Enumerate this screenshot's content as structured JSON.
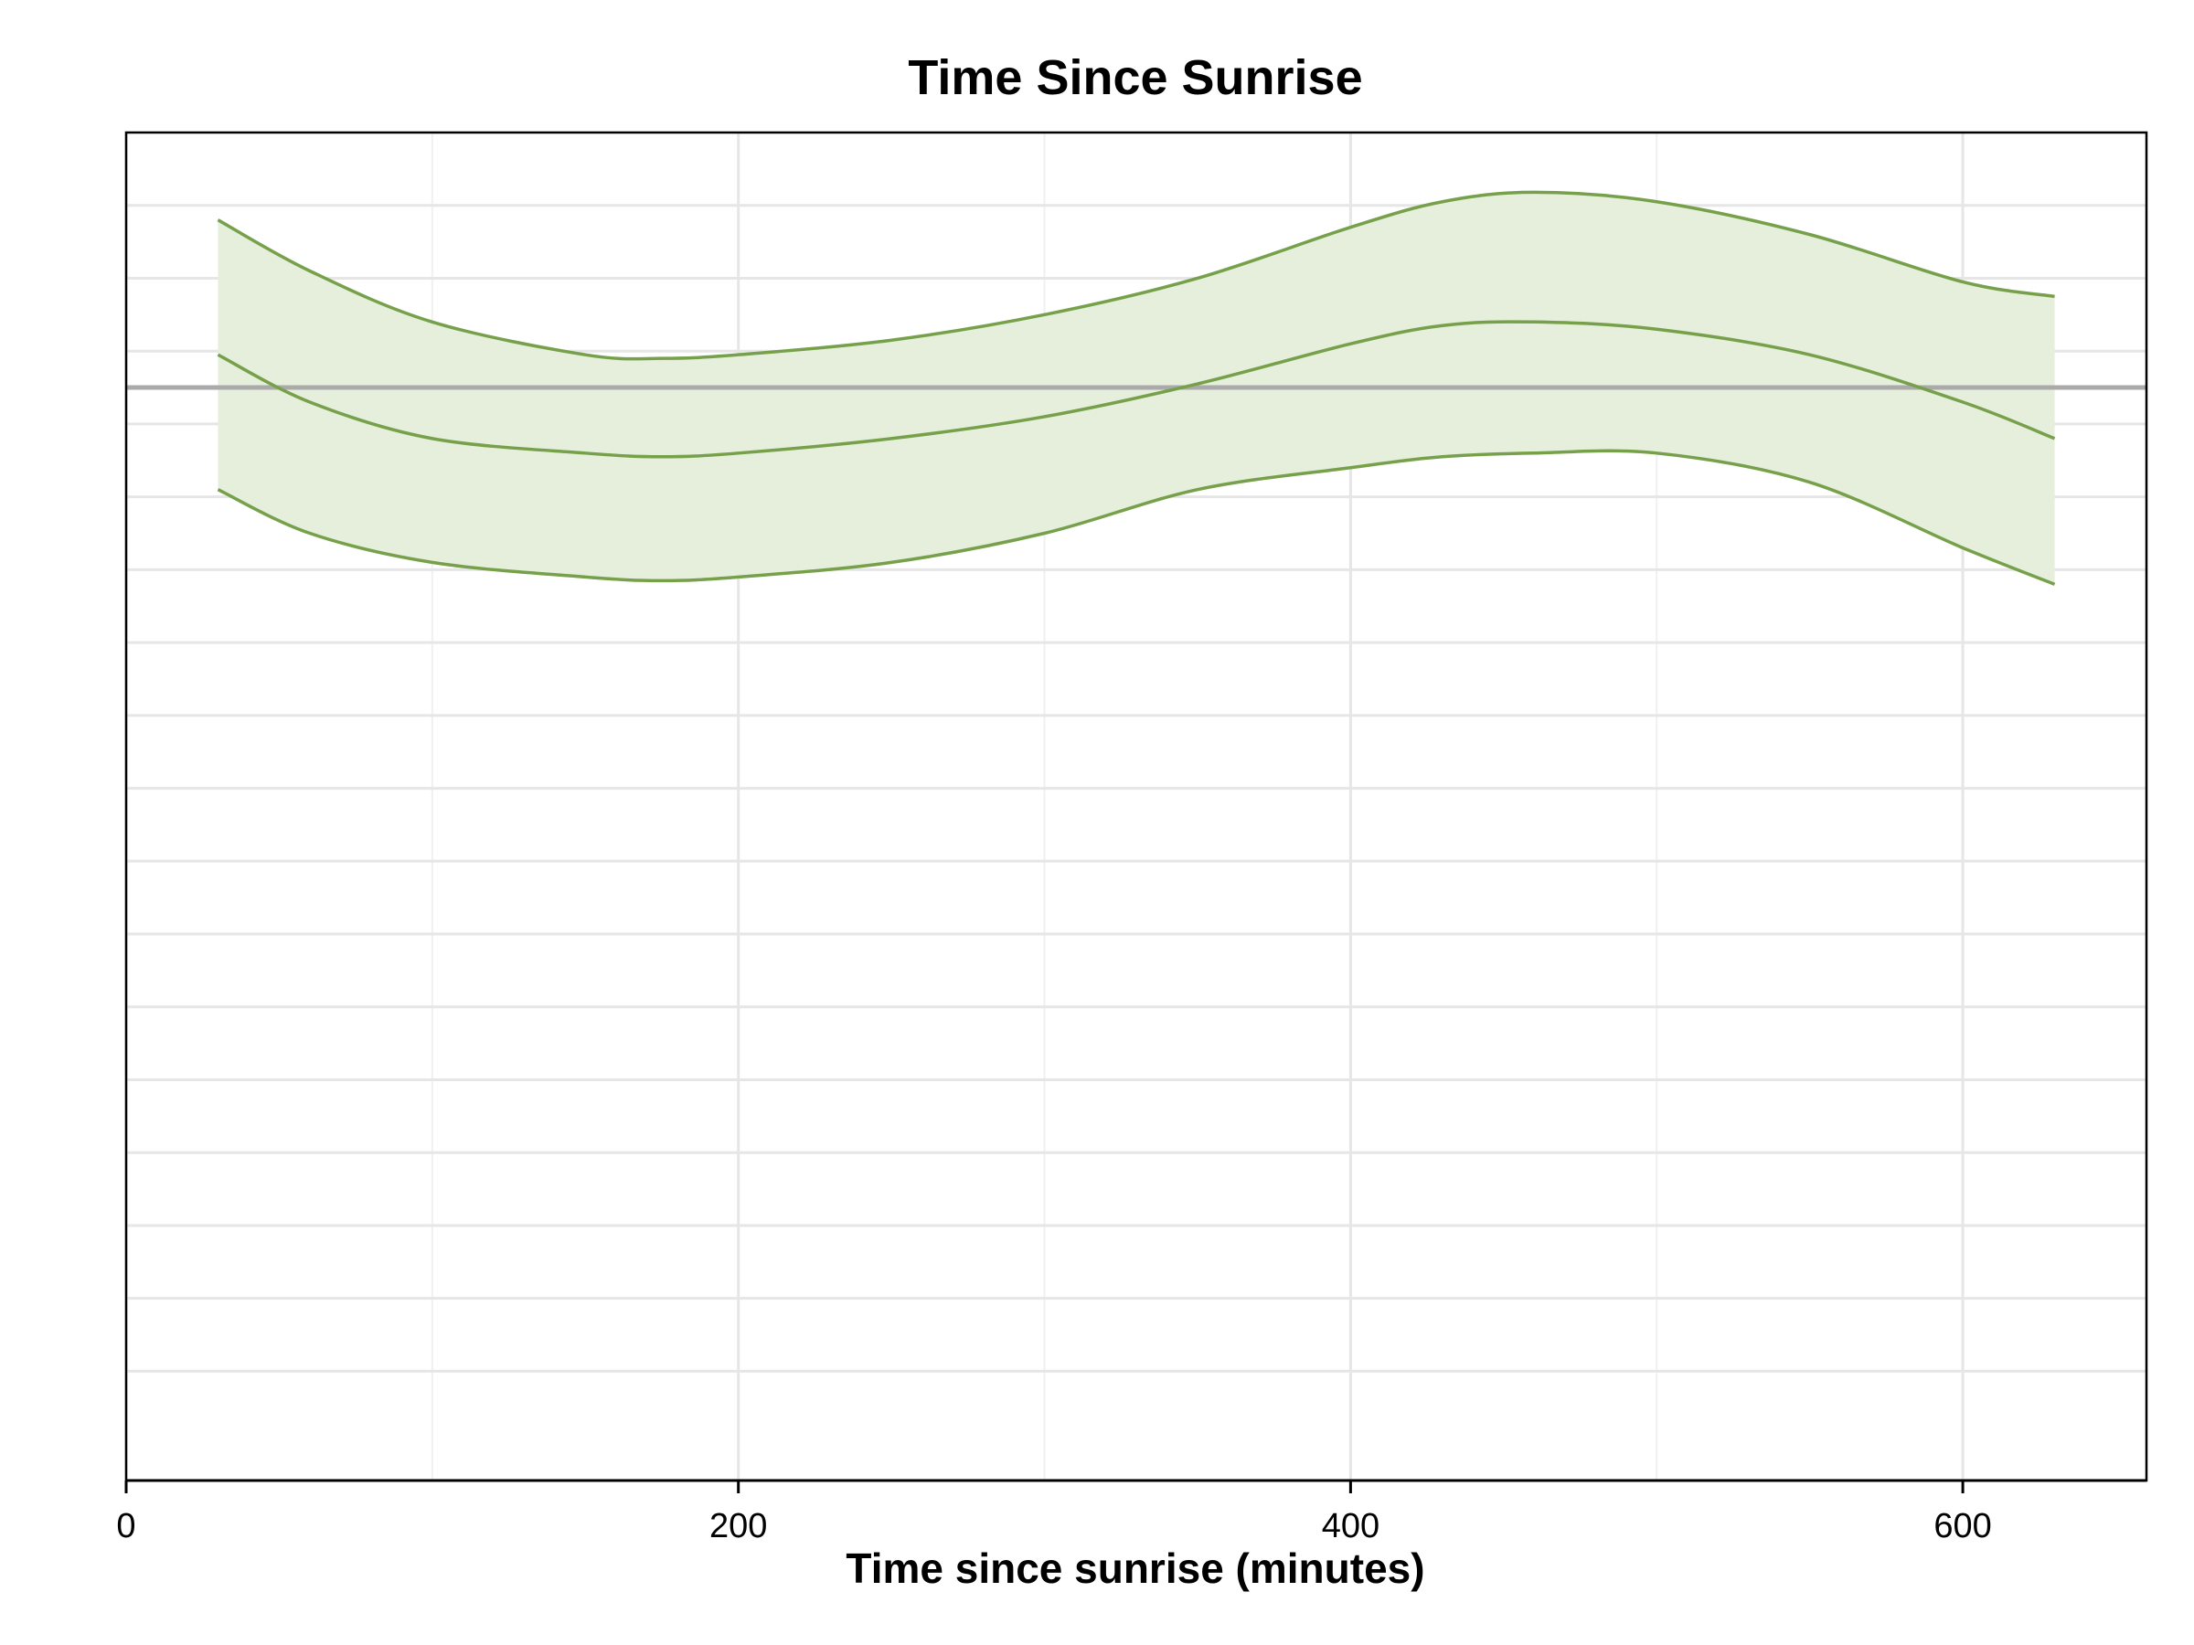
{
  "chart_data": {
    "type": "area",
    "title": "Time Since Sunrise",
    "xlabel": "Time since sunrise (minutes)",
    "ylabel": "",
    "xlim": [
      0,
      660
    ],
    "x_ticks": [
      0,
      200,
      400,
      600
    ],
    "x_tick_labels": [
      "0",
      "200",
      "400",
      "600"
    ],
    "grid": true,
    "y_tick_labels_shown": false,
    "reference_line": {
      "y": 0
    },
    "colors": {
      "line": "#76a04a",
      "band_fill": "#e5efdc",
      "reference_line": "#aaaaaa",
      "grid": "#e6e6e6"
    },
    "x": [
      30,
      60,
      100,
      150,
      175,
      200,
      250,
      300,
      350,
      400,
      430,
      460,
      500,
      550,
      600,
      630
    ],
    "series": [
      {
        "role": "upper",
        "values": [
          0.23,
          0.16,
          0.09,
          0.045,
          0.04,
          0.045,
          0.065,
          0.1,
          0.15,
          0.22,
          0.255,
          0.268,
          0.255,
          0.21,
          0.145,
          0.125
        ]
      },
      {
        "role": "estimate",
        "values": [
          0.045,
          -0.02,
          -0.07,
          -0.09,
          -0.095,
          -0.09,
          -0.07,
          -0.04,
          0.005,
          0.06,
          0.085,
          0.09,
          0.08,
          0.045,
          -0.02,
          -0.07
        ]
      },
      {
        "role": "lower",
        "values": [
          -0.14,
          -0.2,
          -0.24,
          -0.26,
          -0.265,
          -0.26,
          -0.24,
          -0.2,
          -0.14,
          -0.11,
          -0.095,
          -0.09,
          -0.09,
          -0.13,
          -0.22,
          -0.27
        ]
      }
    ],
    "ylim": [
      -1.5,
      0.35
    ]
  }
}
